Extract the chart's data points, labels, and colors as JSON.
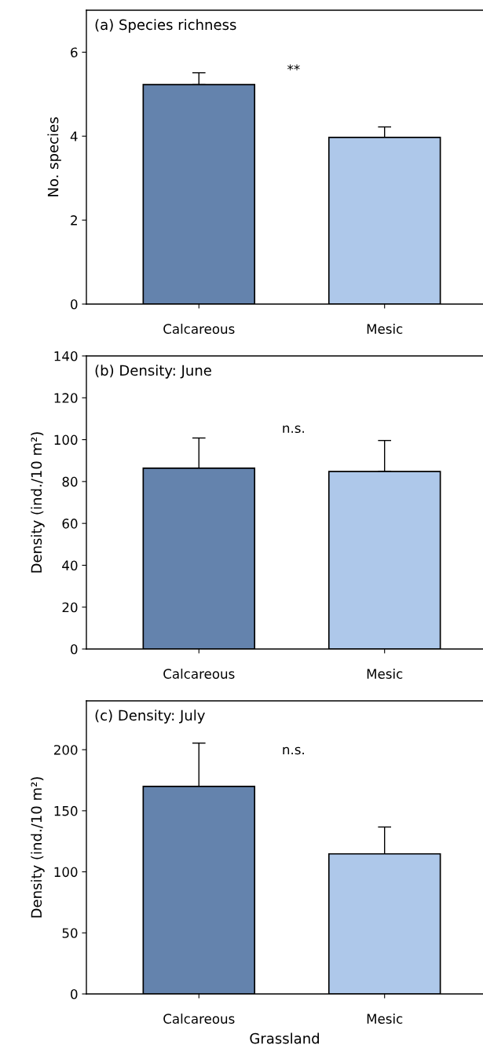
{
  "chart_data": [
    {
      "type": "bar",
      "title": "(a) Species richness",
      "ylabel": "No. species",
      "categories": [
        "Calcareous",
        "Mesic"
      ],
      "values": [
        5.23,
        3.97
      ],
      "errors": [
        0.28,
        0.25
      ],
      "colors": [
        "#6483ad",
        "#aec8ea"
      ],
      "ylim": [
        0,
        7
      ],
      "yticks": [
        0,
        2,
        4,
        6
      ],
      "grid": false,
      "annotations": [
        "**"
      ]
    },
    {
      "type": "bar",
      "title": "(b) Density: June",
      "ylabel": "Density (ind./10 m²)",
      "categories": [
        "Calcareous",
        "Mesic"
      ],
      "values": [
        86.4,
        84.8
      ],
      "errors": [
        14.4,
        14.8
      ],
      "colors": [
        "#6483ad",
        "#aec8ea"
      ],
      "ylim": [
        0,
        140
      ],
      "yticks": [
        0,
        20,
        40,
        60,
        80,
        100,
        120,
        140
      ],
      "grid": false,
      "annotations": [
        "n.s."
      ]
    },
    {
      "type": "bar",
      "title": "(c) Density: July",
      "ylabel": "Density (ind./10 m²)",
      "xlabel": "Grassland",
      "categories": [
        "Calcareous",
        "Mesic"
      ],
      "values": [
        170,
        114.7
      ],
      "errors": [
        35.4,
        22
      ],
      "colors": [
        "#6483ad",
        "#aec8ea"
      ],
      "ylim": [
        0,
        240
      ],
      "yticks": [
        0,
        50,
        100,
        150,
        200
      ],
      "grid": false,
      "annotations": [
        "n.s."
      ]
    }
  ]
}
